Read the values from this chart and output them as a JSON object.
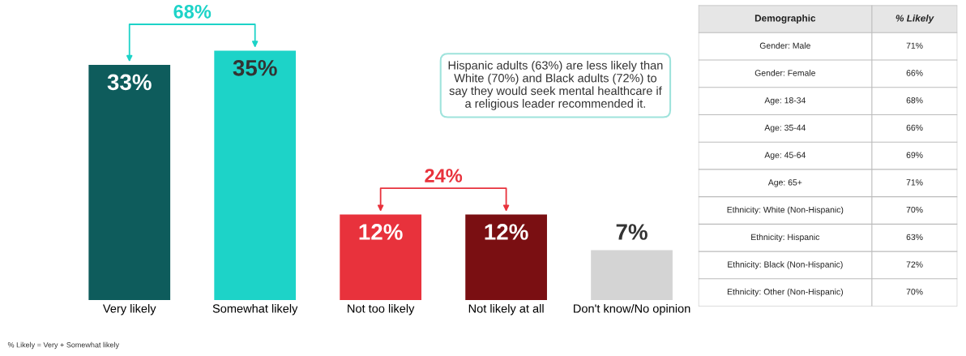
{
  "chart_data": [
    {
      "type": "bar",
      "categories": [
        "Very likely",
        "Somewhat likely",
        "Not too likely",
        "Not likely at all",
        "Don't know/No opinion"
      ],
      "values": [
        33,
        35,
        12,
        12,
        7
      ],
      "colors": [
        "#0e5c5c",
        "#1dd3c8",
        "#e8323c",
        "#7a0f12",
        "#d4d4d4"
      ],
      "value_labels": [
        "33%",
        "35%",
        "12%",
        "12%",
        "7%"
      ],
      "tick_labels": "x",
      "annotations": [
        "68%",
        "24%",
        "Hispanic adults (63%) are less likely than White (70%) and Black adults (72%) to say they would seek mental healthcare if a religious leader recommended it.",
        "% Likely = Very + Somewhat likely"
      ]
    },
    {
      "type": "other",
      "xlabel": "Demographic",
      "ylabel": "% Likely",
      "categories": [
        "Gender: Male",
        "Gender: Female",
        "Age: 18-34",
        "Age: 35-44",
        "Age: 45-64",
        "Age: 65+",
        "Ethnicity: White (Non-Hispanic)",
        "Ethnicity: Hispanic",
        "Ethnicity: Black (Non-Hispanic)",
        "Ethnicity: Other (Non-Hispanic)"
      ],
      "values": [
        71,
        66,
        68,
        66,
        69,
        71,
        70,
        63,
        72,
        70
      ],
      "value_labels": [
        "71%",
        "66%",
        "68%",
        "66%",
        "69%",
        "71%",
        "70%",
        "63%",
        "72%",
        "70%"
      ]
    }
  ]
}
